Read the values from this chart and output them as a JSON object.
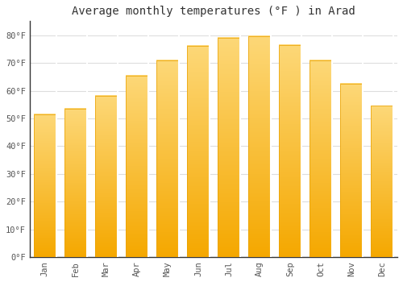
{
  "months": [
    "Jan",
    "Feb",
    "Mar",
    "Apr",
    "May",
    "Jun",
    "Jul",
    "Aug",
    "Sep",
    "Oct",
    "Nov",
    "Dec"
  ],
  "values": [
    51.5,
    53.5,
    58.0,
    65.5,
    71.0,
    76.0,
    79.0,
    79.5,
    76.5,
    71.0,
    62.5,
    54.5
  ],
  "bar_color_top": "#FDD878",
  "bar_color_bottom": "#F5A800",
  "background_color": "#FFFFFF",
  "grid_color": "#DDDDDD",
  "title": "Average monthly temperatures (°F ) in Arad",
  "title_fontsize": 10,
  "ylabel_ticks": [
    "0°F",
    "10°F",
    "20°F",
    "30°F",
    "40°F",
    "50°F",
    "60°F",
    "70°F",
    "80°F"
  ],
  "ytick_values": [
    0,
    10,
    20,
    30,
    40,
    50,
    60,
    70,
    80
  ],
  "ylim": [
    0,
    85
  ],
  "tick_fontsize": 7.5,
  "font_family": "monospace"
}
